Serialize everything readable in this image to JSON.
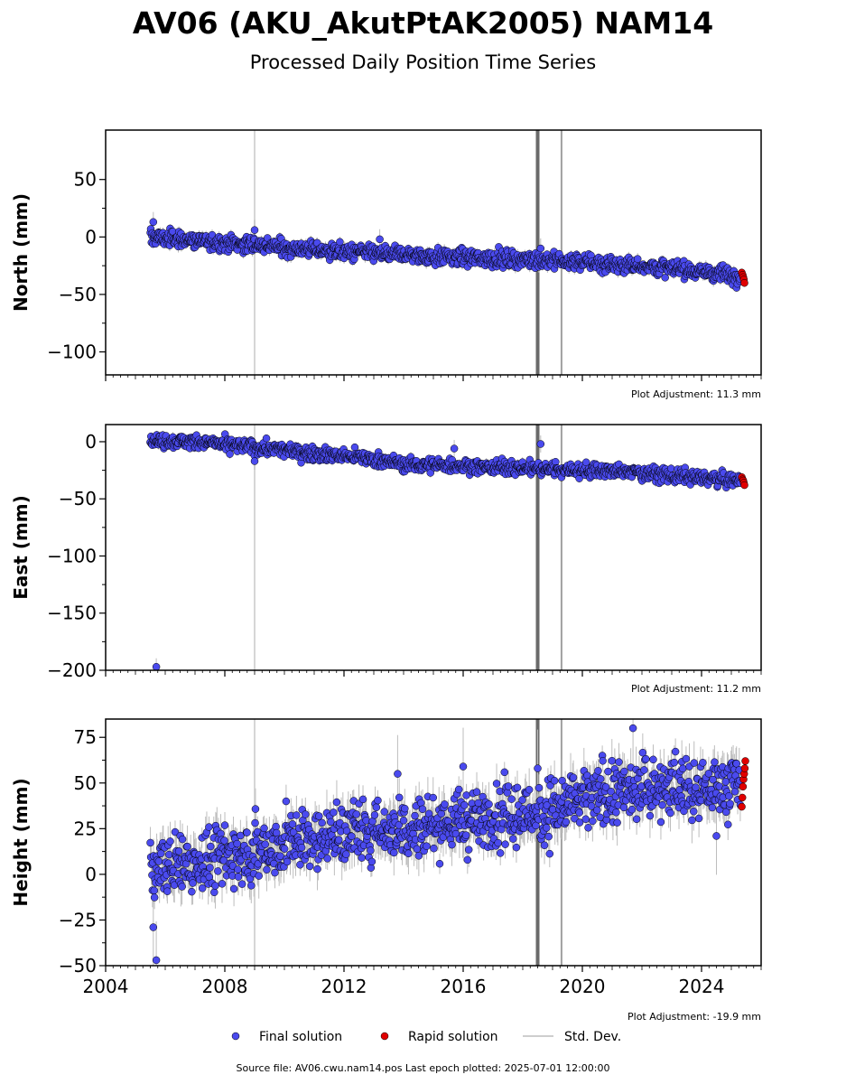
{
  "title": "AV06 (AKU_AkutPtAK2005) NAM14",
  "subtitle": "Processed Daily Position Time Series",
  "source_note": "Source file: AV06.cwu.nam14.pos  Last epoch plotted: 2025-07-01 12:00:00",
  "legend": {
    "final": "Final solution",
    "rapid": "Rapid solution",
    "std": "Std. Dev."
  },
  "colors": {
    "final": "#4a4aee",
    "rapid": "#e00000",
    "std": "#bdbdbd",
    "outline": "#000000"
  },
  "chart_data": {
    "type": "scatter",
    "x_axis": {
      "range": [
        2004.0,
        2026.0
      ],
      "ticks": [
        2004,
        2008,
        2012,
        2016,
        2020,
        2024
      ],
      "tick_labels": [
        "2004",
        "2008",
        "2012",
        "2016",
        "2020",
        "2024"
      ]
    },
    "vertical_lines": [
      {
        "x": 2009.0,
        "shade": "light"
      },
      {
        "x": 2018.5,
        "shade": "dark"
      },
      {
        "x": 2019.3,
        "shade": "medium"
      }
    ],
    "panels": [
      {
        "id": "north",
        "ylabel": "North (mm)",
        "ylim": [
          -120,
          93
        ],
        "yticks": [
          50,
          0,
          -50,
          -100
        ],
        "ytick_labels": [
          "50",
          "0",
          "−50",
          "−100"
        ],
        "adjustment": "Plot Adjustment: 11.3 mm",
        "trend": [
          [
            2005.5,
            0
          ],
          [
            2009.0,
            -7
          ],
          [
            2012.0,
            -13
          ],
          [
            2016.0,
            -18
          ],
          [
            2018.5,
            -20
          ],
          [
            2020.0,
            -22
          ],
          [
            2022.0,
            -25
          ],
          [
            2024.0,
            -30
          ],
          [
            2025.3,
            -34
          ]
        ],
        "noise": 3.5,
        "outliers": [
          [
            2005.6,
            13
          ],
          [
            2009.0,
            6
          ],
          [
            2013.2,
            -2
          ],
          [
            2018.6,
            -10
          ]
        ],
        "rapid": [
          [
            2025.35,
            -31
          ],
          [
            2025.38,
            -33
          ],
          [
            2025.4,
            -35
          ],
          [
            2025.42,
            -37
          ],
          [
            2025.44,
            -40
          ]
        ]
      },
      {
        "id": "east",
        "ylabel": "East (mm)",
        "ylim": [
          -200,
          15
        ],
        "yticks": [
          0,
          -50,
          -100,
          -150,
          -200
        ],
        "ytick_labels": [
          "0",
          "−50",
          "−100",
          "−150",
          "−200"
        ],
        "adjustment": "Plot Adjustment: 11.2 mm",
        "trend": [
          [
            2005.5,
            1
          ],
          [
            2007.0,
            0
          ],
          [
            2009.0,
            -5
          ],
          [
            2011.0,
            -10
          ],
          [
            2013.0,
            -15
          ],
          [
            2014.0,
            -20
          ],
          [
            2016.0,
            -21
          ],
          [
            2018.0,
            -23
          ],
          [
            2020.0,
            -25
          ],
          [
            2022.0,
            -27
          ],
          [
            2024.0,
            -32
          ],
          [
            2025.3,
            -34
          ]
        ],
        "noise": 3.0,
        "outliers": [
          [
            2005.7,
            -197
          ],
          [
            2018.6,
            -2
          ],
          [
            2015.7,
            -6
          ],
          [
            2009.0,
            -17
          ]
        ],
        "rapid": [
          [
            2025.35,
            -31
          ],
          [
            2025.38,
            -33
          ],
          [
            2025.4,
            -34
          ],
          [
            2025.42,
            -36
          ],
          [
            2025.44,
            -38
          ]
        ]
      },
      {
        "id": "height",
        "ylabel": "Height (mm)",
        "ylim": [
          -50,
          85
        ],
        "yticks": [
          75,
          50,
          25,
          0,
          -25,
          -50
        ],
        "ytick_labels": [
          "75",
          "50",
          "25",
          "0",
          "−25",
          "−50"
        ],
        "adjustment": "Plot Adjustment: -19.9 mm",
        "trend": [
          [
            2005.5,
            3
          ],
          [
            2008.0,
            9
          ],
          [
            2010.0,
            17
          ],
          [
            2012.0,
            22
          ],
          [
            2014.0,
            26
          ],
          [
            2016.0,
            29
          ],
          [
            2018.0,
            32
          ],
          [
            2020.0,
            40
          ],
          [
            2022.0,
            48
          ],
          [
            2023.0,
            48
          ],
          [
            2024.0,
            46
          ],
          [
            2025.3,
            50
          ]
        ],
        "noise": 8.5,
        "outliers": [
          [
            2005.7,
            -47
          ],
          [
            2005.6,
            -29
          ],
          [
            2021.7,
            80
          ],
          [
            2024.5,
            21
          ],
          [
            2013.8,
            55
          ],
          [
            2016.0,
            59
          ],
          [
            2018.5,
            58
          ]
        ],
        "rapid": [
          [
            2025.35,
            37
          ],
          [
            2025.37,
            42
          ],
          [
            2025.39,
            48
          ],
          [
            2025.41,
            52
          ],
          [
            2025.43,
            55
          ],
          [
            2025.45,
            58
          ],
          [
            2025.47,
            62
          ]
        ]
      }
    ]
  }
}
